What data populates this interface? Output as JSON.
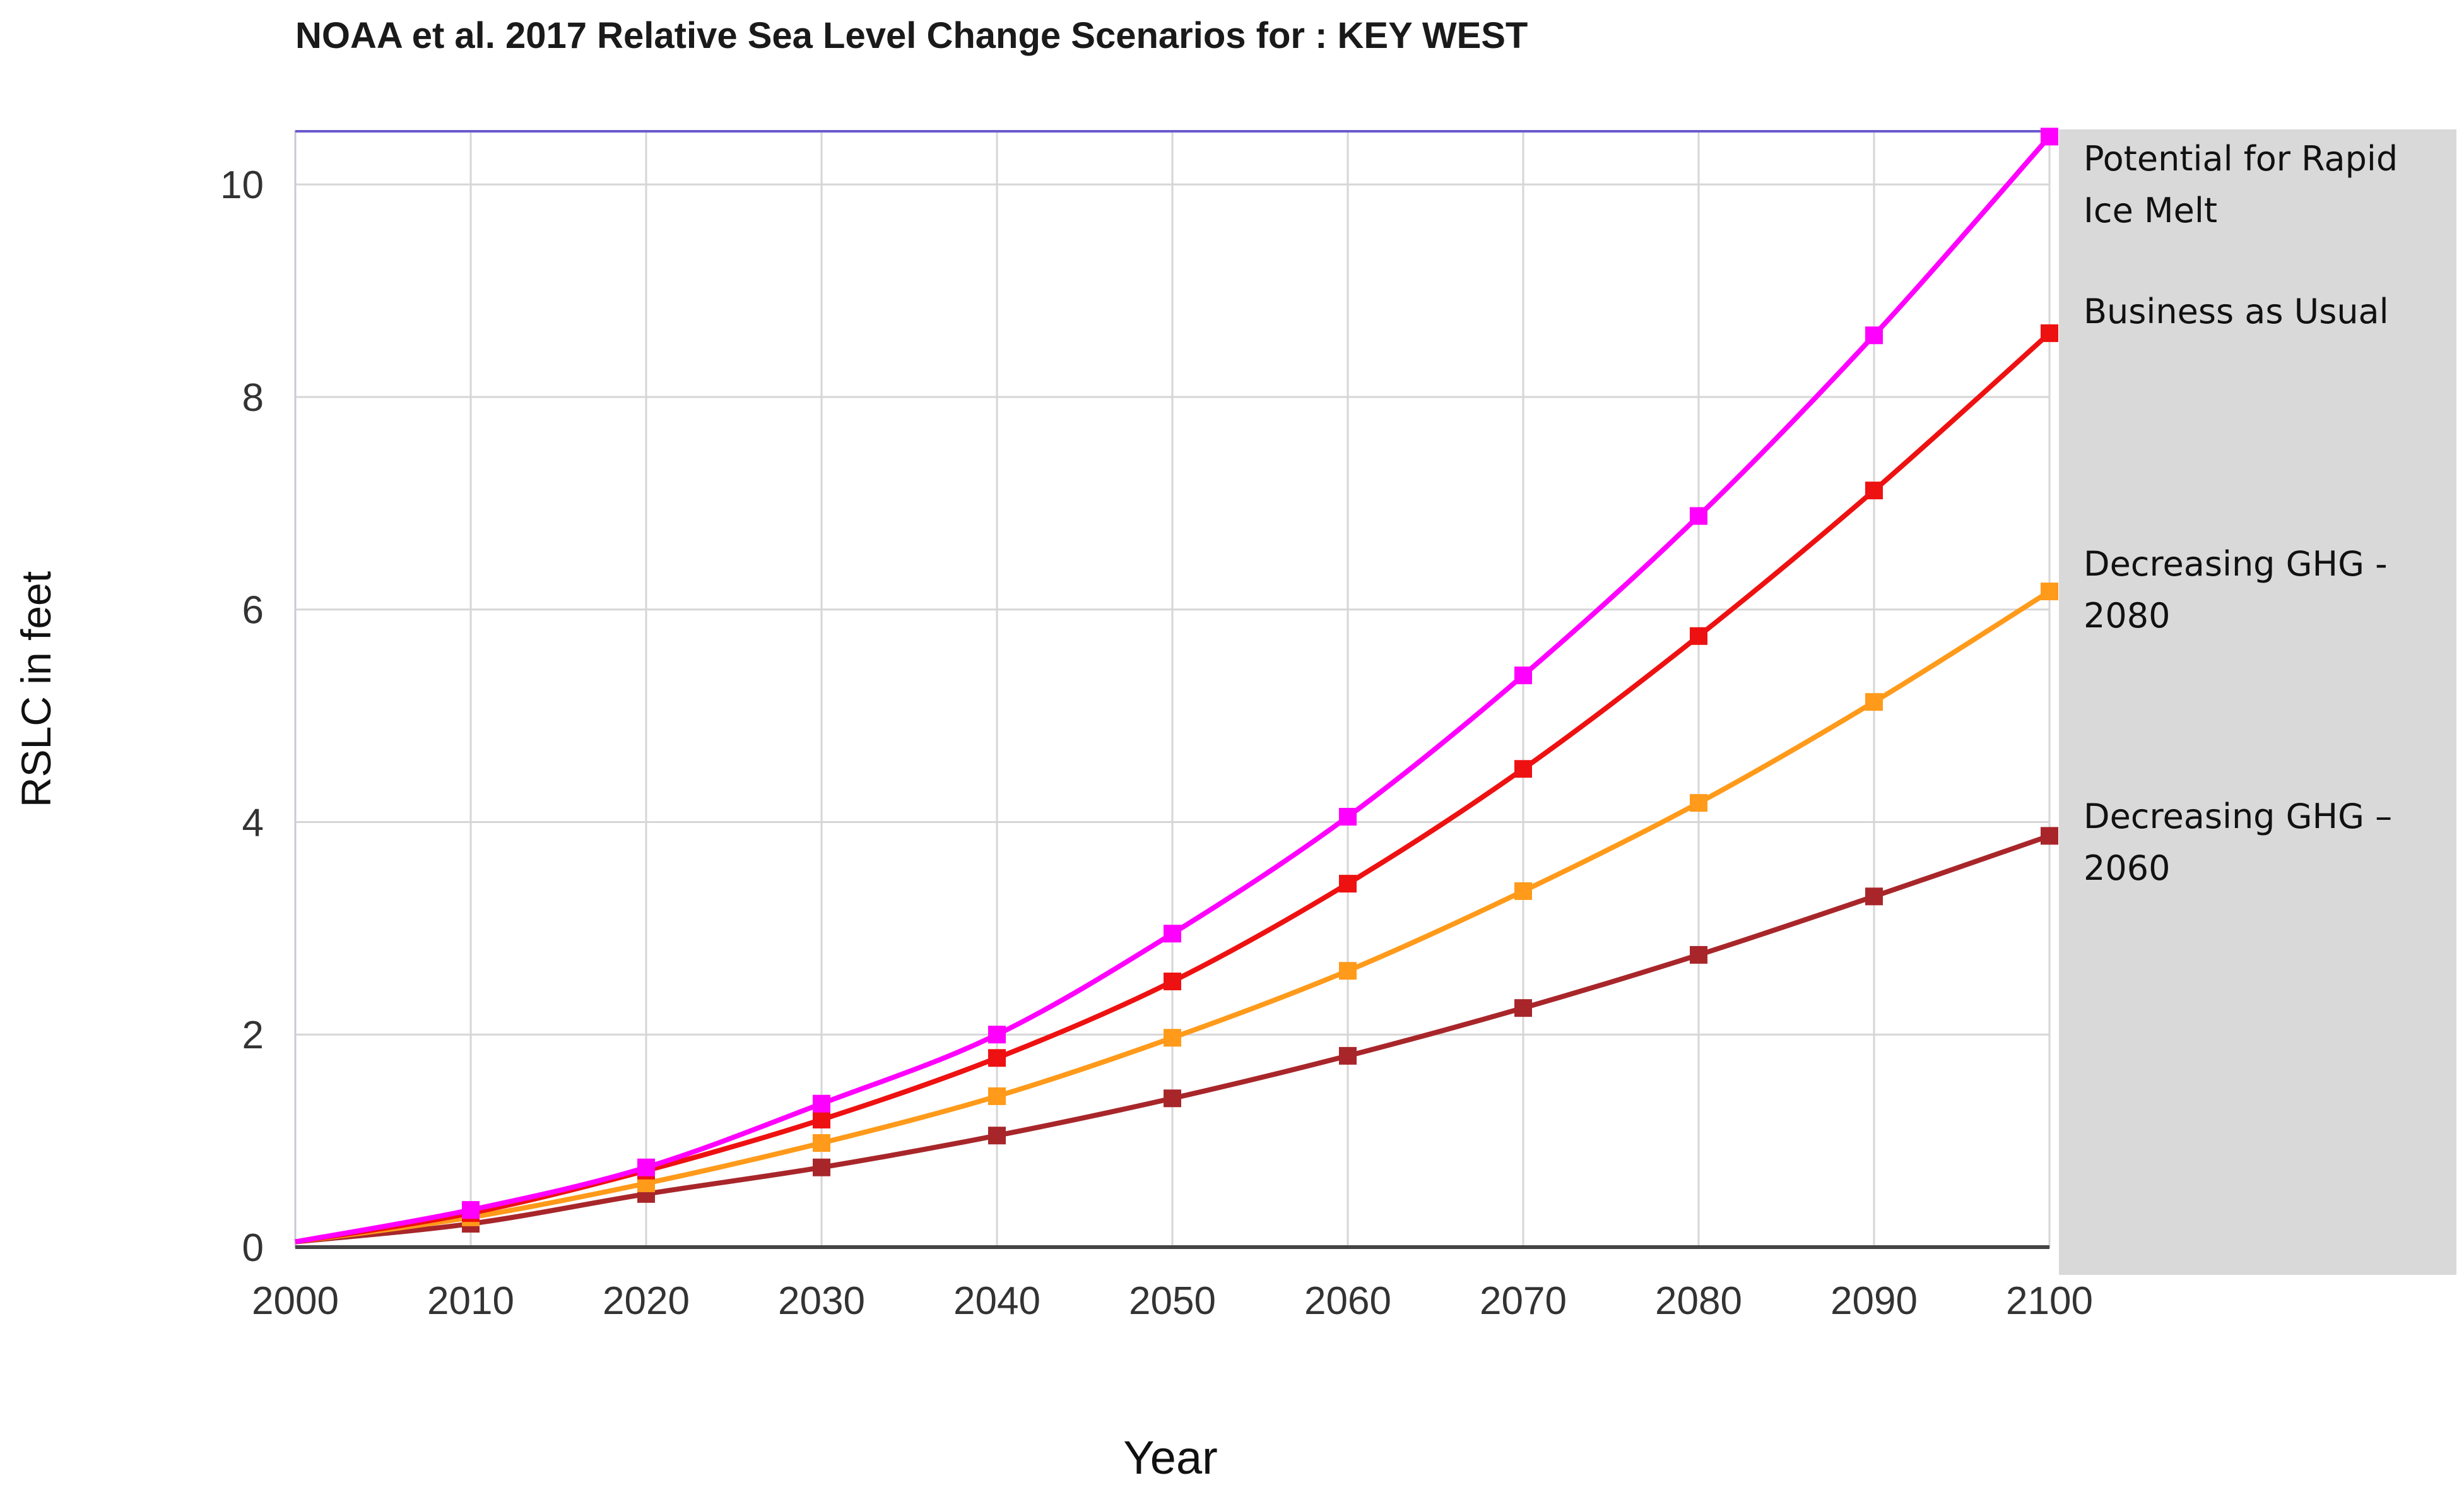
{
  "chart_data": {
    "type": "line",
    "title": "NOAA et al. 2017 Relative Sea Level Change Scenarios for : KEY WEST",
    "xlabel": "Year",
    "ylabel": "RSLC in feet",
    "x": [
      2000,
      2010,
      2020,
      2030,
      2040,
      2050,
      2060,
      2070,
      2080,
      2090,
      2100
    ],
    "xlim": [
      2000,
      2100
    ],
    "ylim": [
      0,
      10.5
    ],
    "x_ticks": [
      "2000",
      "2010",
      "2020",
      "2030",
      "2040",
      "2050",
      "2060",
      "2070",
      "2080",
      "2090",
      "2100"
    ],
    "y_ticks": [
      "0",
      "2",
      "4",
      "6",
      "8",
      "10"
    ],
    "grid": true,
    "legend_placement": "right",
    "series": [
      {
        "name": "Potential for Rapid Ice Melt",
        "label_lines": [
          "Potential for Rapid",
          "Ice Melt"
        ],
        "color": "#ff00ff",
        "values": [
          0.05,
          0.35,
          0.75,
          1.35,
          2.0,
          2.95,
          4.05,
          5.38,
          6.88,
          8.58,
          10.45
        ]
      },
      {
        "name": "Business as Usual",
        "label_lines": [
          "Business as Usual"
        ],
        "color": "#ee1111",
        "values": [
          0.05,
          0.32,
          0.72,
          1.2,
          1.78,
          2.5,
          3.42,
          4.5,
          5.75,
          7.12,
          8.6
        ]
      },
      {
        "name": "Decreasing GHG - 2080",
        "label_lines": [
          "Decreasing GHG -",
          "2080"
        ],
        "color": "#ff9a1a",
        "values": [
          0.05,
          0.28,
          0.6,
          0.98,
          1.42,
          1.97,
          2.6,
          3.35,
          4.18,
          5.13,
          6.17
        ]
      },
      {
        "name": "Decreasing GHG – 2060",
        "label_lines": [
          "Decreasing GHG –",
          "2060"
        ],
        "color": "#a8262a",
        "values": [
          0.05,
          0.22,
          0.5,
          0.75,
          1.05,
          1.4,
          1.8,
          2.25,
          2.75,
          3.3,
          3.87
        ]
      }
    ]
  }
}
